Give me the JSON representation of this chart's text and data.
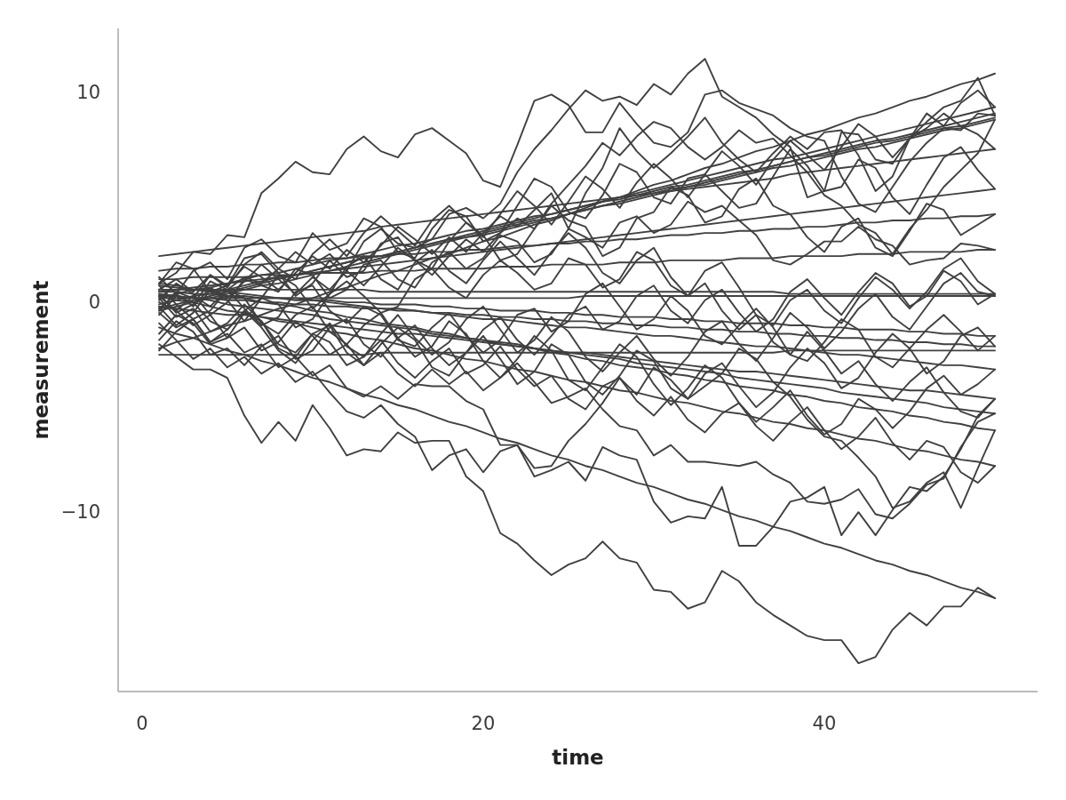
{
  "chart_data": {
    "type": "line",
    "xlabel": "time",
    "ylabel": "measurement",
    "xlim": [
      -1.4,
      52.5
    ],
    "ylim": [
      -18.55,
      13.05
    ],
    "xticks": [
      0,
      20,
      40
    ],
    "yticks": [
      {
        "value": -10,
        "label": "−10"
      },
      0,
      10
    ],
    "x": [
      1,
      2,
      3,
      4,
      5,
      6,
      7,
      8,
      9,
      10,
      11,
      12,
      13,
      14,
      15,
      16,
      17,
      18,
      19,
      20,
      21,
      22,
      23,
      24,
      25,
      26,
      27,
      28,
      29,
      30,
      31,
      32,
      33,
      34,
      35,
      36,
      37,
      38,
      39,
      40,
      41,
      42,
      43,
      44,
      45,
      46,
      47,
      48,
      49,
      50
    ],
    "series": [
      {
        "color": "#404040",
        "values": [
          0.9,
          1.4,
          2.4,
          2.3,
          3.2,
          3.1,
          5.2,
          5.9,
          6.7,
          6.2,
          6.1,
          7.3,
          7.9,
          7.2,
          6.9,
          8.0,
          8.3,
          7.7,
          7.1,
          5.8,
          5.5,
          7.5,
          9.6,
          9.9,
          9.4,
          8.1,
          8.1,
          9.5,
          8.5,
          7.6,
          7.4,
          8.1,
          9.9,
          10.1,
          9.5,
          9.2,
          8.9,
          8.3,
          7.9,
          7.7,
          6.0,
          4.7,
          4.3,
          5.5,
          6.7,
          7.6,
          8.3,
          8.2,
          9.0,
          8.9
        ]
      },
      {
        "color": "#404040",
        "values": [
          0.0,
          -0.4,
          0.3,
          -0.2,
          0.6,
          1.2,
          0.9,
          1.6,
          2.4,
          1.8,
          2.3,
          1.5,
          2.9,
          3.5,
          2.8,
          2.6,
          3.0,
          4.2,
          4.5,
          4.0,
          4.7,
          6.2,
          7.3,
          8.2,
          9.2,
          10.1,
          9.6,
          9.8,
          9.4,
          10.4,
          9.9,
          10.9,
          11.6,
          9.8,
          9.3,
          8.8,
          8.0,
          7.4,
          5.0,
          5.3,
          8.1,
          8.0,
          6.8,
          6.6,
          7.8,
          8.6,
          9.3,
          9.6,
          10.7,
          8.9
        ]
      },
      {
        "color": "#404040",
        "values": [
          -2.0,
          -2.6,
          -3.2,
          -3.2,
          -3.6,
          -5.4,
          -6.7,
          -5.7,
          -6.6,
          -4.9,
          -6.0,
          -7.3,
          -7.0,
          -7.1,
          -6.2,
          -6.7,
          -6.6,
          -6.6,
          -8.3,
          -9.0,
          -11.0,
          -11.5,
          -12.3,
          -13.0,
          -12.5,
          -12.2,
          -11.4,
          -12.2,
          -12.4,
          -13.7,
          -13.8,
          -14.6,
          -14.3,
          -12.8,
          -13.3,
          -14.3,
          -14.9,
          -15.4,
          -15.9,
          -16.1,
          -16.1,
          -17.2,
          -16.9,
          -15.6,
          -14.8,
          -15.4,
          -14.5,
          -14.5,
          -13.6,
          -14.1
        ]
      },
      {
        "color": "#404040",
        "values": [
          -0.5,
          -1.2,
          -0.8,
          -1.9,
          -1.5,
          -2.4,
          -2.0,
          -3.1,
          -2.6,
          -3.5,
          -3.0,
          -4.1,
          -4.5,
          -4.0,
          -4.6,
          -3.9,
          -4.0,
          -4.0,
          -4.7,
          -5.1,
          -6.8,
          -6.8,
          -8.3,
          -8.0,
          -7.6,
          -8.5,
          -6.9,
          -7.3,
          -7.5,
          -9.5,
          -10.5,
          -10.2,
          -10.3,
          -8.8,
          -11.6,
          -11.6,
          -10.7,
          -9.5,
          -9.3,
          -8.8,
          -11.1,
          -10.0,
          -11.1,
          -9.9,
          -8.8,
          -9.0,
          -8.3,
          -7.0,
          -5.4,
          -4.6
        ]
      },
      {
        "color": "#404040",
        "values": [
          0.3,
          -0.4,
          -1.1,
          -0.6,
          -1.7,
          -1.2,
          -2.3,
          -1.9,
          -0.9,
          -1.6,
          -2.5,
          -2.0,
          -3.0,
          -2.4,
          -3.4,
          -4.0,
          -3.2,
          -3.9,
          -3.3,
          -4.2,
          -3.6,
          -2.9,
          -3.8,
          -4.8,
          -4.5,
          -4.1,
          -5.1,
          -5.9,
          -6.1,
          -7.3,
          -6.8,
          -7.6,
          -7.6,
          -7.7,
          -7.8,
          -7.6,
          -8.2,
          -8.6,
          -9.5,
          -9.6,
          -9.4,
          -8.9,
          -10.1,
          -10.3,
          -9.6,
          -8.7,
          -8.4,
          -6.9,
          -5.7,
          -5.3
        ]
      },
      {
        "color": "#404040",
        "values": [
          -1.0,
          -1.8,
          -2.7,
          -2.2,
          -3.1,
          -2.6,
          -3.4,
          -2.9,
          -3.8,
          -3.3,
          -4.3,
          -5.2,
          -5.5,
          -4.9,
          -5.8,
          -6.4,
          -8.0,
          -7.3,
          -7.0,
          -8.1,
          -7.1,
          -6.8,
          -7.9,
          -7.8,
          -6.6,
          -5.8,
          -4.8,
          -3.6,
          -4.4,
          -3.1,
          -3.7,
          -4.6,
          -4.0,
          -3.4,
          -2.2,
          -2.7,
          -3.8,
          -4.5,
          -5.6,
          -6.4,
          -6.6,
          -7.4,
          -8.3,
          -9.8,
          -9.5,
          -8.6,
          -8.1,
          -9.8,
          -7.9,
          -6.1
        ]
      },
      {
        "color": "#404040",
        "values": [
          0.6,
          1.1,
          0.5,
          1.3,
          0.8,
          1.7,
          1.2,
          0.6,
          1.4,
          2.2,
          1.6,
          2.5,
          1.9,
          2.7,
          3.6,
          3.0,
          2.3,
          3.1,
          2.4,
          3.3,
          4.1,
          3.6,
          4.4,
          5.2,
          3.5,
          5.2,
          6.4,
          8.3,
          7.2,
          6.4,
          7.1,
          7.9,
          8.8,
          7.6,
          6.8,
          6.2,
          7.1,
          7.9,
          7.3,
          8.1,
          8.2,
          7.0,
          5.3,
          6.0,
          7.8,
          8.3,
          9.0,
          8.4,
          8.0,
          7.3
        ]
      },
      {
        "color": "#404040",
        "values": [
          -0.3,
          0.4,
          -0.2,
          0.7,
          0.2,
          1.0,
          1.8,
          1.1,
          0.4,
          1.2,
          0.6,
          1.5,
          0.8,
          1.7,
          2.6,
          2.0,
          1.3,
          2.2,
          3.0,
          2.4,
          3.3,
          4.0,
          3.5,
          4.7,
          5.6,
          6.5,
          7.6,
          7.0,
          7.9,
          8.6,
          8.3,
          7.4,
          6.8,
          7.4,
          8.2,
          7.6,
          7.8,
          7.0,
          6.2,
          5.1,
          4.6,
          3.7,
          3.3,
          2.3,
          3.5,
          4.4,
          5.5,
          6.3,
          7.1,
          8.7
        ]
      },
      {
        "color": "#404040",
        "values": [
          1.2,
          0.4,
          1.5,
          1.9,
          1.1,
          2.6,
          3.0,
          2.2,
          1.9,
          3.3,
          2.5,
          2.8,
          4.0,
          3.6,
          2.4,
          2.1,
          3.5,
          4.4,
          4.1,
          2.9,
          3.3,
          4.6,
          5.9,
          5.5,
          4.3,
          4.0,
          5.1,
          6.6,
          6.2,
          5.0,
          4.7,
          5.9,
          6.1,
          5.3,
          4.5,
          4.7,
          6.0,
          7.3,
          6.5,
          5.3,
          5.5,
          6.8,
          6.4,
          5.0,
          4.2,
          5.6,
          6.9,
          7.4,
          6.3,
          5.4
        ]
      },
      {
        "color": "#404040",
        "values": [
          0.9,
          1.9,
          1.6,
          0.5,
          0.8,
          2.1,
          2.3,
          1.4,
          0.3,
          0.9,
          2.0,
          1.2,
          1.5,
          2.8,
          3.1,
          2.0,
          1.6,
          2.9,
          3.8,
          3.2,
          2.0,
          2.3,
          3.5,
          4.6,
          3.9,
          3.6,
          2.2,
          2.6,
          4.0,
          4.3,
          5.5,
          5.1,
          3.8,
          4.1,
          5.4,
          5.9,
          4.6,
          4.2,
          3.1,
          2.4,
          3.6,
          4.0,
          2.6,
          2.2,
          3.4,
          4.7,
          4.4,
          3.2,
          3.7,
          4.2
        ]
      },
      {
        "color": "#404040",
        "values": [
          0.1,
          0.9,
          0.4,
          -0.6,
          0.0,
          1.1,
          0.8,
          0.5,
          1.6,
          1.3,
          0.2,
          0.6,
          1.8,
          2.0,
          1.1,
          0.7,
          1.9,
          2.4,
          1.6,
          2.1,
          3.2,
          2.9,
          1.9,
          2.3,
          3.5,
          3.1,
          2.6,
          3.8,
          4.1,
          3.3,
          3.7,
          4.8,
          4.3,
          4.6,
          3.9,
          3.2,
          2.0,
          1.8,
          2.3,
          2.9,
          2.9,
          3.6,
          3.0,
          2.7,
          1.8,
          2.0,
          2.1,
          2.8,
          2.7,
          2.5
        ]
      },
      {
        "color": "#404040",
        "values": [
          -0.6,
          0.3,
          0.0,
          -0.9,
          -1.3,
          -0.4,
          0.2,
          -0.1,
          -1.2,
          -0.8,
          0.4,
          1.0,
          0.3,
          -0.5,
          -0.2,
          1.1,
          1.6,
          0.7,
          0.2,
          1.3,
          2.0,
          1.4,
          0.6,
          0.9,
          2.1,
          1.8,
          0.7,
          1.1,
          2.4,
          2.0,
          0.8,
          0.3,
          1.5,
          1.9,
          0.7,
          -0.6,
          -1.1,
          0.1,
          0.6,
          -0.4,
          -1.0,
          0.2,
          1.2,
          0.6,
          -0.3,
          0.5,
          1.6,
          2.1,
          1.0,
          0.4
        ]
      },
      {
        "color": "#404040",
        "values": [
          0.4,
          -0.5,
          -0.1,
          1.0,
          0.6,
          -0.3,
          -1.1,
          -0.7,
          0.5,
          0.8,
          -0.4,
          -1.0,
          -0.2,
          -0.6,
          -1.8,
          -2.1,
          -1.2,
          -0.5,
          -1.6,
          -2.4,
          -1.8,
          -0.6,
          -0.3,
          -1.4,
          -0.9,
          0.4,
          0.9,
          -0.2,
          -1.3,
          -0.8,
          0.3,
          -0.4,
          -1.6,
          -2.0,
          -1.1,
          -0.3,
          -1.2,
          -2.5,
          -2.8,
          -1.9,
          -0.8,
          -1.3,
          -2.6,
          -3.1,
          -2.2,
          -1.3,
          -0.6,
          -1.4,
          -2.3,
          -1.6
        ]
      },
      {
        "color": "#404040",
        "values": [
          -1.5,
          -0.6,
          -1.0,
          -2.0,
          -1.7,
          -0.5,
          -0.9,
          -2.2,
          -2.6,
          -1.5,
          -1.1,
          -2.4,
          -3.0,
          -2.0,
          -1.2,
          -1.8,
          -3.1,
          -3.5,
          -2.4,
          -1.6,
          -2.7,
          -3.9,
          -3.3,
          -2.0,
          -2.5,
          -3.8,
          -4.4,
          -3.5,
          -2.3,
          -2.8,
          -4.1,
          -4.6,
          -3.4,
          -2.9,
          -4.0,
          -5.0,
          -4.3,
          -3.1,
          -2.2,
          -2.9,
          -4.1,
          -3.6,
          -2.4,
          -1.5,
          -2.2,
          -3.4,
          -2.8,
          -1.6,
          -1.2,
          -2.1
        ]
      },
      {
        "color": "#404040",
        "values": [
          0.8,
          -0.1,
          -0.8,
          -0.4,
          0.6,
          0.2,
          -1.0,
          -1.5,
          -0.6,
          -0.2,
          -1.4,
          -2.0,
          -1.1,
          -0.5,
          -1.7,
          -2.6,
          -2.1,
          -0.9,
          -1.5,
          -2.8,
          -3.6,
          -2.7,
          -1.6,
          -2.3,
          -3.7,
          -4.2,
          -3.1,
          -2.0,
          -2.6,
          -3.9,
          -4.9,
          -4.1,
          -3.0,
          -3.6,
          -4.8,
          -5.7,
          -5.0,
          -4.2,
          -5.4,
          -6.3,
          -5.8,
          -4.6,
          -5.1,
          -6.0,
          -5.2,
          -4.1,
          -3.5,
          -4.4,
          -3.9,
          -3.2
        ]
      },
      {
        "color": "#404040",
        "values": [
          -0.2,
          -1.1,
          -0.5,
          0.6,
          0.1,
          -0.9,
          0.2,
          1.3,
          0.8,
          -0.3,
          0.4,
          1.7,
          2.2,
          1.1,
          0.6,
          1.9,
          2.5,
          1.5,
          0.9,
          2.0,
          2.9,
          2.1,
          1.3,
          2.4,
          3.3,
          2.6,
          1.4,
          0.9,
          2.0,
          2.6,
          1.2,
          0.3,
          0.9,
          -0.4,
          -1.3,
          -0.6,
          -1.9,
          -2.5,
          -1.4,
          -2.3,
          -3.4,
          -2.8,
          -3.9,
          -4.7,
          -3.8,
          -3.1,
          -4.3,
          -5.2,
          -5.5,
          -4.6
        ]
      },
      {
        "color": "#404040",
        "values": [
          -1.8,
          -0.9,
          -1.4,
          -2.5,
          -2.2,
          -3.0,
          -2.1,
          -1.6,
          -2.7,
          -2.3,
          -1.2,
          -0.8,
          -2.0,
          -2.6,
          -1.7,
          -1.1,
          -2.2,
          -3.0,
          -2.4,
          -1.3,
          -0.7,
          -1.8,
          -2.5,
          -1.6,
          -0.6,
          -0.2,
          -1.3,
          -0.9,
          0.3,
          0.8,
          -0.4,
          -1.0,
          0.1,
          0.6,
          -0.5,
          -1.4,
          -0.8,
          0.5,
          1.1,
          0.2,
          -0.6,
          0.5,
          1.4,
          0.9,
          -0.2,
          0.3,
          1.5,
          1.0,
          -0.1,
          0.4
        ]
      },
      {
        "color": "#404040",
        "values": [
          0.2,
          -0.7,
          -0.3,
          -1.4,
          -1.0,
          -0.1,
          -0.9,
          -2.0,
          -2.4,
          -1.5,
          -1.9,
          -3.0,
          -2.6,
          -1.8,
          -2.9,
          -3.6,
          -2.8,
          -2.2,
          -3.4,
          -3.0,
          -2.1,
          -3.2,
          -4.0,
          -3.5,
          -4.6,
          -5.1,
          -4.0,
          -3.6,
          -4.7,
          -5.4,
          -4.5,
          -5.6,
          -6.2,
          -5.3,
          -4.8,
          -5.9,
          -6.6,
          -5.7,
          -5.0,
          -6.1,
          -7.0,
          -6.4,
          -5.5,
          -6.7,
          -7.5,
          -6.6,
          -6.9,
          -8.1,
          -8.6,
          -7.8
        ]
      },
      {
        "color": "#404040",
        "values": [
          -0.4,
          0.5,
          0.2,
          1.3,
          0.7,
          1.8,
          2.4,
          1.6,
          1.1,
          2.3,
          3.0,
          2.2,
          3.3,
          4.1,
          3.4,
          2.7,
          3.9,
          4.6,
          3.8,
          3.1,
          4.2,
          5.3,
          4.6,
          3.7,
          4.8,
          6.0,
          5.4,
          4.5,
          5.7,
          6.6,
          5.9,
          5.0,
          6.1,
          7.2,
          6.5,
          5.6,
          6.8,
          7.7,
          7.0,
          6.3,
          7.4,
          8.5,
          7.9,
          6.9,
          7.8,
          9.0,
          8.4,
          9.5,
          10.1,
          9.3
        ]
      },
      {
        "color": "#404040",
        "values": [
          -2.3,
          -1.4,
          -0.8,
          -1.9,
          -1.3,
          -0.4,
          -1.2,
          -2.3,
          -2.9,
          -1.8,
          -1.0,
          -2.1,
          -2.6,
          -1.5,
          -0.6,
          -1.7,
          -2.5,
          -1.9,
          -0.8,
          -0.2,
          -1.3,
          -2.4,
          -1.8,
          -0.7,
          -1.4,
          -2.6,
          -3.3,
          -2.4,
          -1.6,
          -2.7,
          -3.5,
          -2.6,
          -1.4,
          -0.9,
          -2.0,
          -2.8,
          -1.7,
          -0.5,
          -1.2,
          -2.2,
          -1.4,
          -0.3,
          0.4,
          -0.7,
          -1.3,
          -0.2,
          0.9,
          1.4,
          0.5,
          0.3
        ]
      },
      {
        "color": "#404040",
        "values": [
          -2.2,
          -1.9,
          -1.7,
          -1.4,
          -1.1,
          -0.9,
          -0.6,
          -0.3,
          -0.1,
          0.2,
          0.5,
          0.7,
          1.0,
          1.3,
          1.5,
          1.8,
          2.1,
          2.3,
          2.6,
          2.9,
          3.1,
          3.4,
          3.7,
          3.9,
          4.2,
          4.5,
          4.8,
          5.0,
          5.3,
          5.6,
          5.8,
          6.1,
          6.4,
          6.6,
          6.9,
          7.2,
          7.4,
          7.7,
          8.0,
          8.2,
          8.5,
          8.8,
          9.0,
          9.3,
          9.6,
          9.8,
          10.1,
          10.4,
          10.6,
          10.9
        ]
      },
      {
        "color": "#404040",
        "values": [
          -0.3,
          -0.1,
          0.1,
          0.3,
          0.5,
          0.7,
          0.9,
          1.1,
          1.3,
          1.5,
          1.7,
          1.9,
          2.1,
          2.2,
          2.4,
          2.6,
          2.8,
          3.0,
          3.2,
          3.4,
          3.6,
          3.8,
          4.0,
          4.2,
          4.4,
          4.6,
          4.8,
          5.0,
          5.2,
          5.4,
          5.6,
          5.8,
          6.0,
          6.2,
          6.4,
          6.6,
          6.8,
          6.9,
          7.1,
          7.3,
          7.5,
          7.7,
          7.9,
          8.1,
          8.3,
          8.5,
          8.7,
          8.9,
          9.1,
          9.3
        ]
      },
      {
        "color": "#404040",
        "values": [
          -0.4,
          -0.2,
          0.0,
          0.2,
          0.4,
          0.6,
          0.8,
          0.9,
          1.1,
          1.3,
          1.5,
          1.7,
          1.9,
          2.1,
          2.3,
          2.5,
          2.7,
          2.9,
          3.1,
          3.2,
          3.4,
          3.6,
          3.8,
          4.0,
          4.2,
          4.4,
          4.6,
          4.8,
          5.0,
          5.2,
          5.4,
          5.5,
          5.7,
          5.9,
          6.1,
          6.3,
          6.5,
          6.7,
          6.9,
          7.1,
          7.3,
          7.5,
          7.7,
          7.8,
          8.0,
          8.2,
          8.4,
          8.6,
          8.8,
          9.0
        ]
      },
      {
        "color": "#404040",
        "values": [
          0.2,
          0.4,
          0.6,
          0.7,
          0.9,
          1.1,
          1.3,
          1.4,
          1.6,
          1.8,
          2.0,
          2.1,
          2.3,
          2.5,
          2.7,
          2.8,
          3.0,
          3.2,
          3.4,
          3.5,
          3.7,
          3.9,
          4.1,
          4.2,
          4.4,
          4.6,
          4.8,
          4.9,
          5.1,
          5.3,
          5.5,
          5.6,
          5.8,
          6.0,
          6.2,
          6.3,
          6.5,
          6.7,
          6.9,
          7.0,
          7.2,
          7.4,
          7.6,
          7.7,
          7.9,
          8.1,
          8.3,
          8.4,
          8.6,
          8.8
        ]
      },
      {
        "color": "#404040",
        "values": [
          -0.1,
          0.1,
          0.3,
          0.4,
          0.6,
          0.8,
          1.0,
          1.2,
          1.3,
          1.5,
          1.7,
          1.9,
          2.1,
          2.2,
          2.4,
          2.6,
          2.8,
          3.0,
          3.1,
          3.3,
          3.5,
          3.7,
          3.9,
          4.0,
          4.2,
          4.4,
          4.6,
          4.7,
          4.9,
          5.1,
          5.3,
          5.5,
          5.6,
          5.8,
          6.0,
          6.2,
          6.4,
          6.5,
          6.7,
          6.9,
          7.1,
          7.3,
          7.4,
          7.6,
          7.8,
          8.0,
          8.2,
          8.3,
          8.5,
          8.7
        ]
      },
      {
        "color": "#404040",
        "values": [
          2.2,
          2.3,
          2.4,
          2.5,
          2.6,
          2.7,
          2.8,
          2.9,
          3.0,
          3.1,
          3.2,
          3.3,
          3.4,
          3.6,
          3.7,
          3.8,
          3.9,
          4.0,
          4.1,
          4.2,
          4.3,
          4.4,
          4.5,
          4.6,
          4.7,
          4.8,
          4.9,
          5.0,
          5.1,
          5.2,
          5.3,
          5.4,
          5.5,
          5.6,
          5.7,
          5.8,
          5.9,
          6.1,
          6.2,
          6.3,
          6.4,
          6.5,
          6.6,
          6.7,
          6.8,
          6.9,
          7.0,
          7.1,
          7.2,
          7.3
        ]
      },
      {
        "color": "#404040",
        "values": [
          0.5,
          0.6,
          0.7,
          0.8,
          0.9,
          1.0,
          1.1,
          1.2,
          1.3,
          1.4,
          1.5,
          1.6,
          1.7,
          1.8,
          1.9,
          2.0,
          2.1,
          2.2,
          2.3,
          2.4,
          2.5,
          2.6,
          2.7,
          2.8,
          2.9,
          3.0,
          3.1,
          3.2,
          3.3,
          3.4,
          3.5,
          3.6,
          3.7,
          3.8,
          3.9,
          4.0,
          4.1,
          4.2,
          4.3,
          4.4,
          4.5,
          4.6,
          4.7,
          4.8,
          4.9,
          5.0,
          5.1,
          5.2,
          5.3,
          5.4
        ]
      },
      {
        "color": "#404040",
        "values": [
          1.5,
          1.6,
          1.6,
          1.7,
          1.7,
          1.8,
          1.8,
          1.9,
          1.9,
          2.0,
          2.1,
          2.1,
          2.2,
          2.2,
          2.3,
          2.3,
          2.4,
          2.4,
          2.5,
          2.5,
          2.6,
          2.7,
          2.7,
          2.8,
          2.8,
          2.9,
          2.9,
          3.0,
          3.0,
          3.1,
          3.2,
          3.2,
          3.3,
          3.3,
          3.4,
          3.4,
          3.5,
          3.5,
          3.6,
          3.6,
          3.7,
          3.8,
          3.8,
          3.9,
          3.9,
          4.0,
          4.0,
          4.1,
          4.1,
          4.2
        ]
      },
      {
        "color": "#404040",
        "values": [
          1.1,
          1.1,
          1.2,
          1.2,
          1.2,
          1.2,
          1.3,
          1.3,
          1.3,
          1.4,
          1.4,
          1.4,
          1.4,
          1.5,
          1.5,
          1.5,
          1.6,
          1.6,
          1.6,
          1.6,
          1.7,
          1.7,
          1.7,
          1.8,
          1.8,
          1.8,
          1.8,
          1.9,
          1.9,
          1.9,
          2.0,
          2.0,
          2.0,
          2.0,
          2.1,
          2.1,
          2.1,
          2.2,
          2.2,
          2.2,
          2.2,
          2.3,
          2.3,
          2.3,
          2.4,
          2.4,
          2.4,
          2.4,
          2.5,
          2.5
        ]
      },
      {
        "color": "#404040",
        "values": [
          0.6,
          0.6,
          0.6,
          0.6,
          0.6,
          0.6,
          0.6,
          0.6,
          0.6,
          0.6,
          0.6,
          0.6,
          0.6,
          0.5,
          0.5,
          0.5,
          0.5,
          0.5,
          0.5,
          0.5,
          0.5,
          0.5,
          0.5,
          0.5,
          0.5,
          0.5,
          0.5,
          0.5,
          0.5,
          0.5,
          0.5,
          0.5,
          0.5,
          0.5,
          0.5,
          0.5,
          0.5,
          0.4,
          0.4,
          0.4,
          0.4,
          0.4,
          0.4,
          0.4,
          0.4,
          0.4,
          0.4,
          0.4,
          0.4,
          0.4
        ]
      },
      {
        "color": "#404040",
        "values": [
          0.2,
          0.2,
          0.2,
          0.2,
          0.2,
          0.2,
          0.2,
          0.2,
          0.2,
          0.2,
          0.2,
          0.2,
          0.2,
          0.2,
          0.2,
          0.2,
          0.2,
          0.2,
          0.2,
          0.2,
          0.2,
          0.2,
          0.2,
          0.2,
          0.2,
          0.3,
          0.3,
          0.3,
          0.3,
          0.3,
          0.3,
          0.3,
          0.3,
          0.3,
          0.3,
          0.3,
          0.3,
          0.3,
          0.3,
          0.3,
          0.3,
          0.3,
          0.3,
          0.3,
          0.3,
          0.3,
          0.3,
          0.3,
          0.3,
          0.3
        ]
      },
      {
        "color": "#404040",
        "values": [
          0.5,
          0.5,
          0.4,
          0.4,
          0.3,
          0.3,
          0.2,
          0.2,
          0.2,
          0.1,
          0.1,
          0.0,
          0.0,
          -0.1,
          -0.1,
          -0.1,
          -0.2,
          -0.2,
          -0.3,
          -0.3,
          -0.4,
          -0.4,
          -0.4,
          -0.5,
          -0.5,
          -0.6,
          -0.6,
          -0.7,
          -0.7,
          -0.7,
          -0.8,
          -0.8,
          -0.9,
          -0.9,
          -1.0,
          -1.0,
          -1.0,
          -1.1,
          -1.1,
          -1.2,
          -1.2,
          -1.3,
          -1.3,
          -1.3,
          -1.4,
          -1.4,
          -1.5,
          -1.5,
          -1.6,
          -1.6
        ]
      },
      {
        "color": "#404040",
        "values": [
          0.3,
          0.3,
          0.2,
          0.2,
          0.1,
          0.1,
          0.0,
          0.0,
          -0.1,
          -0.1,
          -0.2,
          -0.2,
          -0.3,
          -0.3,
          -0.4,
          -0.4,
          -0.5,
          -0.5,
          -0.6,
          -0.6,
          -0.7,
          -0.7,
          -0.8,
          -0.8,
          -0.9,
          -0.9,
          -1.0,
          -1.0,
          -1.1,
          -1.1,
          -1.2,
          -1.2,
          -1.3,
          -1.3,
          -1.4,
          -1.4,
          -1.5,
          -1.5,
          -1.6,
          -1.6,
          -1.7,
          -1.7,
          -1.8,
          -1.8,
          -1.9,
          -1.9,
          -2.0,
          -2.0,
          -2.1,
          -2.1
        ]
      },
      {
        "color": "#404040",
        "values": [
          -2.5,
          -2.5,
          -2.5,
          -2.5,
          -2.5,
          -2.5,
          -2.5,
          -2.5,
          -2.5,
          -2.5,
          -2.5,
          -2.5,
          -2.5,
          -2.4,
          -2.4,
          -2.4,
          -2.4,
          -2.4,
          -2.4,
          -2.4,
          -2.4,
          -2.4,
          -2.4,
          -2.4,
          -2.4,
          -2.4,
          -2.4,
          -2.4,
          -2.4,
          -2.4,
          -2.4,
          -2.4,
          -2.4,
          -2.4,
          -2.4,
          -2.4,
          -2.4,
          -2.3,
          -2.3,
          -2.3,
          -2.3,
          -2.3,
          -2.3,
          -2.3,
          -2.3,
          -2.3,
          -2.3,
          -2.3,
          -2.3,
          -2.3
        ]
      },
      {
        "color": "#404040",
        "values": [
          0.8,
          0.7,
          0.6,
          0.6,
          0.5,
          0.4,
          0.3,
          0.2,
          0.1,
          0.1,
          0.0,
          -0.1,
          -0.2,
          -0.3,
          -0.3,
          -0.4,
          -0.5,
          -0.6,
          -0.7,
          -0.8,
          -0.8,
          -0.9,
          -1.0,
          -1.1,
          -1.2,
          -1.2,
          -1.3,
          -1.4,
          -1.5,
          -1.6,
          -1.6,
          -1.7,
          -1.8,
          -1.9,
          -2.0,
          -2.1,
          -2.1,
          -2.2,
          -2.3,
          -2.4,
          -2.5,
          -2.5,
          -2.6,
          -2.7,
          -2.8,
          -2.9,
          -3.0,
          -3.0,
          -3.1,
          -3.2
        ]
      },
      {
        "color": "#404040",
        "values": [
          -0.2,
          -0.3,
          -0.4,
          -0.5,
          -0.6,
          -0.6,
          -0.7,
          -0.8,
          -0.9,
          -1.0,
          -1.1,
          -1.2,
          -1.3,
          -1.4,
          -1.5,
          -1.5,
          -1.6,
          -1.7,
          -1.8,
          -1.9,
          -2.0,
          -2.1,
          -2.2,
          -2.3,
          -2.4,
          -2.4,
          -2.5,
          -2.6,
          -2.7,
          -2.8,
          -2.9,
          -3.0,
          -3.1,
          -3.2,
          -3.3,
          -3.3,
          -3.4,
          -3.5,
          -3.6,
          -3.7,
          -3.8,
          -3.9,
          -4.0,
          -4.1,
          -4.2,
          -4.2,
          -4.3,
          -4.4,
          -4.5,
          -4.6
        ]
      },
      {
        "color": "#404040",
        "values": [
          0.4,
          0.3,
          0.2,
          0.1,
          -0.1,
          -0.2,
          -0.3,
          -0.4,
          -0.5,
          -0.6,
          -0.8,
          -0.9,
          -1.0,
          -1.1,
          -1.2,
          -1.3,
          -1.5,
          -1.6,
          -1.7,
          -1.8,
          -1.9,
          -2.0,
          -2.2,
          -2.3,
          -2.4,
          -2.5,
          -2.6,
          -2.7,
          -2.9,
          -3.0,
          -3.1,
          -3.2,
          -3.3,
          -3.4,
          -3.6,
          -3.7,
          -3.8,
          -3.9,
          -4.0,
          -4.1,
          -4.3,
          -4.4,
          -4.5,
          -4.6,
          -4.7,
          -4.8,
          -5.0,
          -5.1,
          -5.2,
          -5.3
        ]
      },
      {
        "color": "#404040",
        "values": [
          0.9,
          0.8,
          0.6,
          0.5,
          0.3,
          0.2,
          0.0,
          -0.1,
          -0.2,
          -0.4,
          -0.5,
          -0.7,
          -0.8,
          -1.0,
          -1.1,
          -1.2,
          -1.4,
          -1.5,
          -1.7,
          -1.8,
          -2.0,
          -2.1,
          -2.2,
          -2.4,
          -2.5,
          -2.7,
          -2.8,
          -3.0,
          -3.1,
          -3.2,
          -3.4,
          -3.5,
          -3.7,
          -3.8,
          -4.0,
          -4.1,
          -4.2,
          -4.4,
          -4.5,
          -4.7,
          -4.8,
          -5.0,
          -5.1,
          -5.2,
          -5.4,
          -5.5,
          -5.7,
          -5.8,
          -6.0,
          -6.1
        ]
      },
      {
        "color": "#404040",
        "values": [
          0.3,
          0.1,
          0.0,
          -0.2,
          -0.4,
          -0.5,
          -0.7,
          -0.9,
          -1.0,
          -1.2,
          -1.4,
          -1.5,
          -1.7,
          -1.8,
          -2.0,
          -2.2,
          -2.3,
          -2.5,
          -2.7,
          -2.8,
          -3.0,
          -3.2,
          -3.3,
          -3.5,
          -3.7,
          -3.8,
          -4.0,
          -4.2,
          -4.3,
          -4.5,
          -4.7,
          -4.8,
          -5.0,
          -5.2,
          -5.3,
          -5.5,
          -5.7,
          -5.8,
          -6.0,
          -6.1,
          -6.3,
          -6.5,
          -6.6,
          -6.8,
          -7.0,
          -7.1,
          -7.3,
          -7.5,
          -7.6,
          -7.8
        ]
      },
      {
        "color": "#404040",
        "values": [
          -1.2,
          -1.5,
          -1.7,
          -2.0,
          -2.3,
          -2.5,
          -2.8,
          -3.0,
          -3.3,
          -3.6,
          -3.8,
          -4.1,
          -4.4,
          -4.6,
          -4.9,
          -5.1,
          -5.4,
          -5.7,
          -5.9,
          -6.2,
          -6.5,
          -6.7,
          -7.0,
          -7.3,
          -7.5,
          -7.8,
          -8.0,
          -8.3,
          -8.6,
          -8.8,
          -9.1,
          -9.4,
          -9.6,
          -9.9,
          -10.2,
          -10.4,
          -10.7,
          -10.9,
          -11.2,
          -11.5,
          -11.7,
          -12.0,
          -12.3,
          -12.5,
          -12.8,
          -13.0,
          -13.3,
          -13.6,
          -13.8,
          -14.1
        ]
      }
    ]
  }
}
